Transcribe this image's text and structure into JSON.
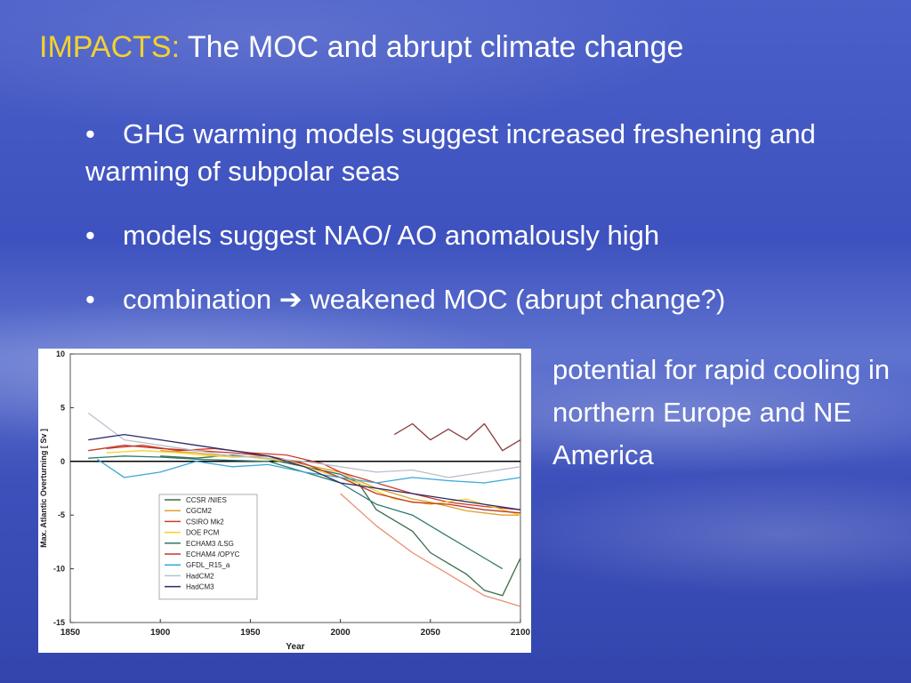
{
  "slide": {
    "title_highlight": "IMPACTS:",
    "title_rest": " The MOC and abrupt climate change",
    "bullets": [
      "GHG warming models suggest increased freshening and warming of subpolar seas",
      "models suggest NAO/ AO anomalously high",
      "combination",
      "weakened MOC (abrupt change?)"
    ],
    "bullet_symbol": "•",
    "arrow_symbol": "➔",
    "side_text": "potential for rapid cooling in northern Europe and NE America"
  },
  "chart_data": {
    "type": "line",
    "xlabel": "Year",
    "ylabel": "Max. Atlantic Overturning [ Sv ]",
    "xlim": [
      1850,
      2100
    ],
    "ylim": [
      -15,
      10
    ],
    "xticks": [
      1850,
      1900,
      1950,
      2000,
      2050,
      2100
    ],
    "yticks": [
      10,
      5,
      0,
      -5,
      -10,
      -15
    ],
    "legend_position": "lower-left",
    "series": [
      {
        "name": "CCSR /NIES",
        "color": "#3a6b4a",
        "x": [
          1900,
          1920,
          1940,
          1960,
          1980,
          2000,
          2010,
          2020,
          2030,
          2040,
          2050,
          2060,
          2070,
          2080,
          2090,
          2100
        ],
        "values": [
          0.5,
          0.3,
          0.6,
          0.2,
          -0.5,
          -1.2,
          -2.0,
          -4.5,
          -5.5,
          -6.5,
          -8.5,
          -9.5,
          -10.5,
          -12.0,
          -12.5,
          -9.0
        ]
      },
      {
        "name": "CGCM2",
        "color": "#e0a030",
        "x": [
          1900,
          1920,
          1940,
          1960,
          1980,
          2000,
          2010,
          2020,
          2030,
          2040,
          2050,
          2060,
          2070,
          2080,
          2090,
          2100
        ],
        "values": [
          1.0,
          0.8,
          0.4,
          0.5,
          -0.3,
          -1.0,
          -1.8,
          -2.5,
          -3.0,
          -3.5,
          -3.8,
          -4.2,
          -4.6,
          -4.8,
          -5.0,
          -5.0
        ]
      },
      {
        "name": "CSIRO Mk2",
        "color": "#d03a2a",
        "x": [
          1870,
          1890,
          1910,
          1930,
          1950,
          1970,
          1990,
          2000,
          2020,
          2040,
          2060,
          2080,
          2100
        ],
        "values": [
          1.2,
          1.5,
          1.0,
          1.2,
          0.8,
          0.6,
          -0.2,
          -1.0,
          -2.0,
          -3.0,
          -3.8,
          -4.2,
          -4.5
        ]
      },
      {
        "name": "DOE PCM",
        "color": "#f2d22a",
        "x": [
          1870,
          1890,
          1910,
          1930,
          1950,
          1970,
          1990,
          2010,
          2030,
          2050,
          2070,
          2090,
          2100
        ],
        "values": [
          0.8,
          1.0,
          0.8,
          0.5,
          0.4,
          0.0,
          -1.0,
          -2.0,
          -3.5,
          -4.0,
          -3.5,
          -4.5,
          -5.0
        ]
      },
      {
        "name": "ECHAM3 /LSG",
        "color": "#2f7a70",
        "x": [
          1860,
          1880,
          1900,
          1920,
          1940,
          1960,
          1980,
          2000,
          2020,
          2040,
          2060,
          2080,
          2090
        ],
        "values": [
          0.3,
          0.5,
          0.4,
          0.2,
          0.1,
          0.0,
          -1.0,
          -2.0,
          -4.0,
          -5.0,
          -7.0,
          -9.0,
          -10.0
        ]
      },
      {
        "name": "ECHAM4 /OPYC",
        "color": "#c0392b",
        "x": [
          1860,
          1880,
          1900,
          1920,
          1940,
          1960,
          1980,
          2000,
          2020,
          2040,
          2060,
          2080,
          2100
        ],
        "values": [
          1.0,
          1.5,
          1.2,
          1.0,
          0.8,
          0.5,
          -0.2,
          -1.5,
          -3.0,
          -3.8,
          -4.0,
          -4.5,
          -4.8
        ]
      },
      {
        "name": "GFDL_R15_a",
        "color": "#38a8d8",
        "x": [
          1865,
          1880,
          1900,
          1920,
          1940,
          1960,
          1980,
          2000,
          2020,
          2040,
          2060,
          2080,
          2100
        ],
        "values": [
          0.2,
          -1.5,
          -1.0,
          0.0,
          -0.5,
          -0.3,
          -1.0,
          -1.5,
          -2.0,
          -1.5,
          -1.8,
          -2.0,
          -1.5
        ]
      },
      {
        "name": "HadCM2",
        "color": "#b8c0cc",
        "x": [
          1860,
          1880,
          1900,
          1920,
          1940,
          1960,
          1980,
          2000,
          2020,
          2040,
          2060,
          2080,
          2100
        ],
        "values": [
          4.5,
          2.0,
          1.5,
          1.0,
          0.5,
          0.3,
          0.0,
          -0.5,
          -1.0,
          -0.8,
          -1.5,
          -1.0,
          -0.5
        ]
      },
      {
        "name": "HadCM3",
        "color": "#2b2a6b",
        "x": [
          1860,
          1880,
          1900,
          1920,
          1940,
          1960,
          1980,
          2000,
          2020,
          2040,
          2060,
          2080,
          2100
        ],
        "values": [
          2.0,
          2.5,
          2.0,
          1.5,
          1.0,
          0.5,
          -0.5,
          -2.0,
          -2.5,
          -3.0,
          -3.5,
          -4.0,
          -4.5
        ]
      },
      {
        "name": "",
        "color": "#8a3a3a",
        "x": [
          2030,
          2040,
          2050,
          2060,
          2070,
          2080,
          2090,
          2100
        ],
        "values": [
          2.5,
          3.5,
          2.0,
          3.0,
          2.0,
          3.5,
          1.0,
          2.0
        ]
      },
      {
        "name": "",
        "color": "#e89070",
        "x": [
          2000,
          2020,
          2040,
          2060,
          2080,
          2090,
          2100
        ],
        "values": [
          -3.0,
          -6.0,
          -8.5,
          -10.5,
          -12.5,
          -13.0,
          -13.5
        ]
      }
    ]
  }
}
